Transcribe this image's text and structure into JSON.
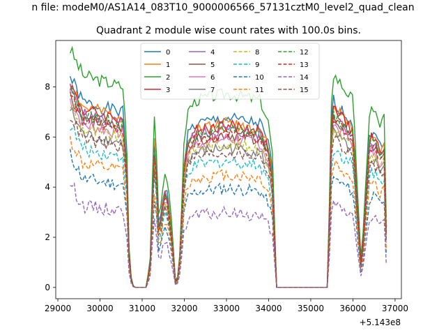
{
  "figure": {
    "title": "n file: modeM0/AS1A14_083T10_9000006566_57131cztM0_level2_quad_clean",
    "subtitle": "Quadrant 2 module wise count rates with 100.0s bins.",
    "x_offset_label": "+5.143e8"
  },
  "chart_data": {
    "type": "line",
    "title": "Quadrant 2 module wise count rates with 100.0s bins.",
    "xlabel": "",
    "ylabel": "",
    "x_offset": 514300000,
    "xlim": [
      28950,
      37150
    ],
    "ylim": [
      -0.45,
      9.85
    ],
    "xticks": [
      29000,
      30000,
      31000,
      32000,
      33000,
      34000,
      35000,
      36000,
      37000
    ],
    "yticks": [
      0,
      2,
      4,
      6,
      8
    ],
    "grid": false,
    "legend": {
      "placement": "top-center",
      "columns": 4
    },
    "profile": [
      [
        29290,
        1.0
      ],
      [
        30550,
        0.93
      ],
      [
        30650,
        0.6
      ],
      [
        30700,
        0.08
      ],
      [
        30800,
        0.0
      ],
      [
        31100,
        0.0
      ],
      [
        31200,
        0.15
      ],
      [
        31280,
        0.82
      ],
      [
        31350,
        0.6
      ],
      [
        31400,
        0.28
      ],
      [
        31470,
        0.45
      ],
      [
        31560,
        0.55
      ],
      [
        31640,
        0.42
      ],
      [
        31700,
        0.3
      ],
      [
        31800,
        0.0
      ],
      [
        31880,
        0.1
      ],
      [
        32000,
        0.7
      ],
      [
        32100,
        0.83
      ],
      [
        32300,
        0.87
      ],
      [
        33000,
        0.9
      ],
      [
        33800,
        0.87
      ],
      [
        34000,
        0.76
      ],
      [
        34100,
        0.6
      ],
      [
        34180,
        0.0
      ],
      [
        35400,
        0.0
      ],
      [
        35480,
        0.75
      ],
      [
        35500,
        1.0
      ],
      [
        36000,
        0.87
      ],
      [
        36200,
        0.1
      ],
      [
        36400,
        0.84
      ],
      [
        36550,
        0.8
      ],
      [
        36650,
        0.75
      ],
      [
        36750,
        0.8
      ],
      [
        36800,
        0.2
      ]
    ],
    "series": [
      {
        "name": "0",
        "color": "#1f77b4",
        "dash": "solid",
        "level": 7.5
      },
      {
        "name": "1",
        "color": "#ff7f0e",
        "dash": "solid",
        "level": 7.3
      },
      {
        "name": "2",
        "color": "#2ca02c",
        "dash": "solid",
        "level": 8.6
      },
      {
        "name": "3",
        "color": "#d62728",
        "dash": "solid",
        "level": 7.2
      },
      {
        "name": "4",
        "color": "#9467bd",
        "dash": "solid",
        "level": 7.0
      },
      {
        "name": "5",
        "color": "#8c564b",
        "dash": "solid",
        "level": 6.8
      },
      {
        "name": "6",
        "color": "#e377c2",
        "dash": "solid",
        "level": 6.6
      },
      {
        "name": "7",
        "color": "#7f7f7f",
        "dash": "solid",
        "level": 6.2
      },
      {
        "name": "8",
        "color": "#bcbd22",
        "dash": "dashed",
        "level": 6.4
      },
      {
        "name": "9",
        "color": "#17becf",
        "dash": "dashed",
        "level": 5.6
      },
      {
        "name": "10",
        "color": "#1f77b4",
        "dash": "dashed",
        "level": 4.4
      },
      {
        "name": "11",
        "color": "#ff7f0e",
        "dash": "dashed",
        "level": 5.0
      },
      {
        "name": "12",
        "color": "#2ca02c",
        "dash": "dashed",
        "level": 7.0
      },
      {
        "name": "13",
        "color": "#d62728",
        "dash": "dashed",
        "level": 6.8
      },
      {
        "name": "14",
        "color": "#9467bd",
        "dash": "dashed",
        "level": 3.3
      },
      {
        "name": "15",
        "color": "#8c564b",
        "dash": "dashed",
        "level": 6.0
      }
    ]
  }
}
